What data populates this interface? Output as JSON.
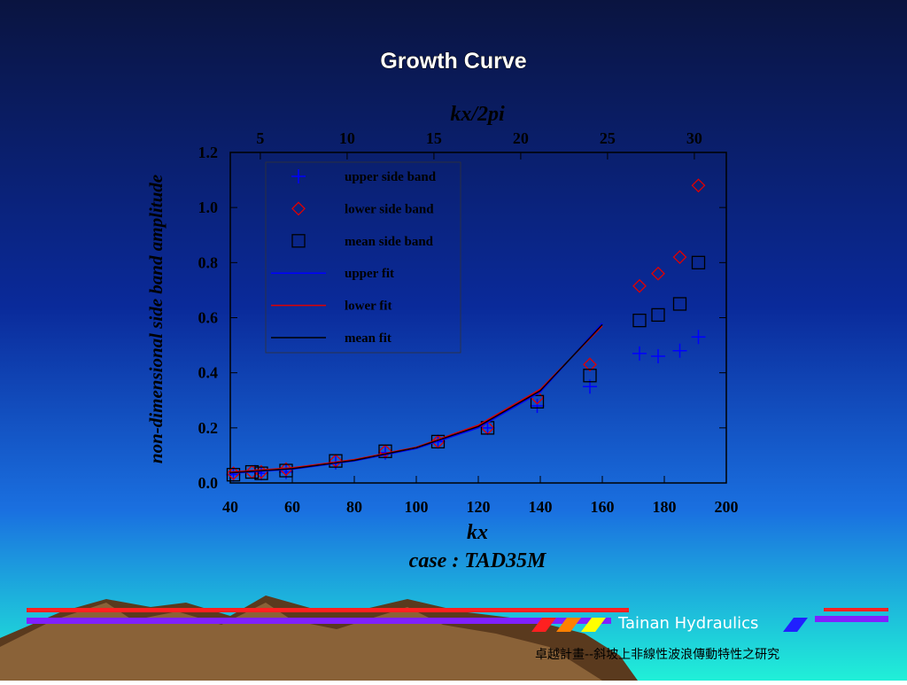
{
  "chart_data": {
    "type": "scatter",
    "title": "Growth Curve",
    "subtitle": "case : TAD35M",
    "xlabel": "kx",
    "ylabel": "non-dimensional side band amplitude",
    "x2label": "kx/2pi",
    "xlim": [
      40,
      200
    ],
    "xticks": [
      40,
      60,
      80,
      100,
      120,
      140,
      160,
      180,
      200
    ],
    "ylim": [
      0,
      1.2
    ],
    "yticks": [
      {
        "value": 0,
        "label": "0.0"
      },
      {
        "value": 0.2,
        "label": "0.2"
      },
      {
        "value": 0.4,
        "label": "0.4"
      },
      {
        "value": 0.6,
        "label": "0.6"
      },
      {
        "value": 0.8,
        "label": "0.8"
      },
      {
        "value": 1.0,
        "label": "1.0"
      },
      {
        "value": 1.2,
        "label": "1.2"
      }
    ],
    "x2lim": [
      3.27,
      31.84
    ],
    "x2ticks": [
      5,
      10,
      15,
      20,
      25,
      30
    ],
    "legend": "upper-left",
    "series": [
      {
        "name": "upper side band",
        "marker": "plus",
        "color": "#0000ff",
        "x": [
          41,
          48,
          50,
          58,
          74,
          90,
          107,
          123,
          139,
          156,
          172,
          178,
          185,
          191
        ],
        "values": [
          0.03,
          0.04,
          0.035,
          0.04,
          0.075,
          0.11,
          0.15,
          0.2,
          0.28,
          0.35,
          0.47,
          0.46,
          0.48,
          0.53
        ]
      },
      {
        "name": "lower side band",
        "marker": "diamond",
        "color": "#e00000",
        "x": [
          41,
          47,
          50,
          58,
          74,
          90,
          107,
          123,
          139,
          156,
          172,
          178,
          185,
          191
        ],
        "values": [
          0.035,
          0.04,
          0.04,
          0.05,
          0.08,
          0.115,
          0.15,
          0.2,
          0.31,
          0.43,
          0.715,
          0.76,
          0.82,
          1.08
        ]
      },
      {
        "name": "mean side band",
        "marker": "square",
        "color": "#000000",
        "x": [
          41,
          47,
          50,
          58,
          74,
          90,
          107,
          123,
          139,
          156,
          172,
          178,
          185,
          191
        ],
        "values": [
          0.03,
          0.04,
          0.035,
          0.045,
          0.08,
          0.115,
          0.15,
          0.2,
          0.295,
          0.39,
          0.59,
          0.61,
          0.65,
          0.8
        ]
      },
      {
        "name": "upper fit",
        "marker": "line",
        "color": "#0000ff",
        "x": [
          40,
          60,
          80,
          100,
          120,
          140,
          160
        ],
        "values": [
          0.035,
          0.05,
          0.08,
          0.125,
          0.2,
          0.33,
          0.58
        ]
      },
      {
        "name": "lower fit",
        "marker": "line",
        "color": "#e00000",
        "x": [
          40,
          60,
          80,
          100,
          120,
          140,
          160
        ],
        "values": [
          0.04,
          0.055,
          0.085,
          0.13,
          0.21,
          0.34,
          0.57
        ]
      },
      {
        "name": "mean fit",
        "marker": "line",
        "color": "#000000",
        "x": [
          40,
          60,
          80,
          100,
          120,
          140,
          160
        ],
        "values": [
          0.037,
          0.052,
          0.082,
          0.128,
          0.205,
          0.335,
          0.575
        ]
      }
    ]
  },
  "footer": {
    "brand": "Tainan Hydraulics",
    "project": "卓越計畫--斜坡上非線性波浪傳動特性之研究"
  }
}
